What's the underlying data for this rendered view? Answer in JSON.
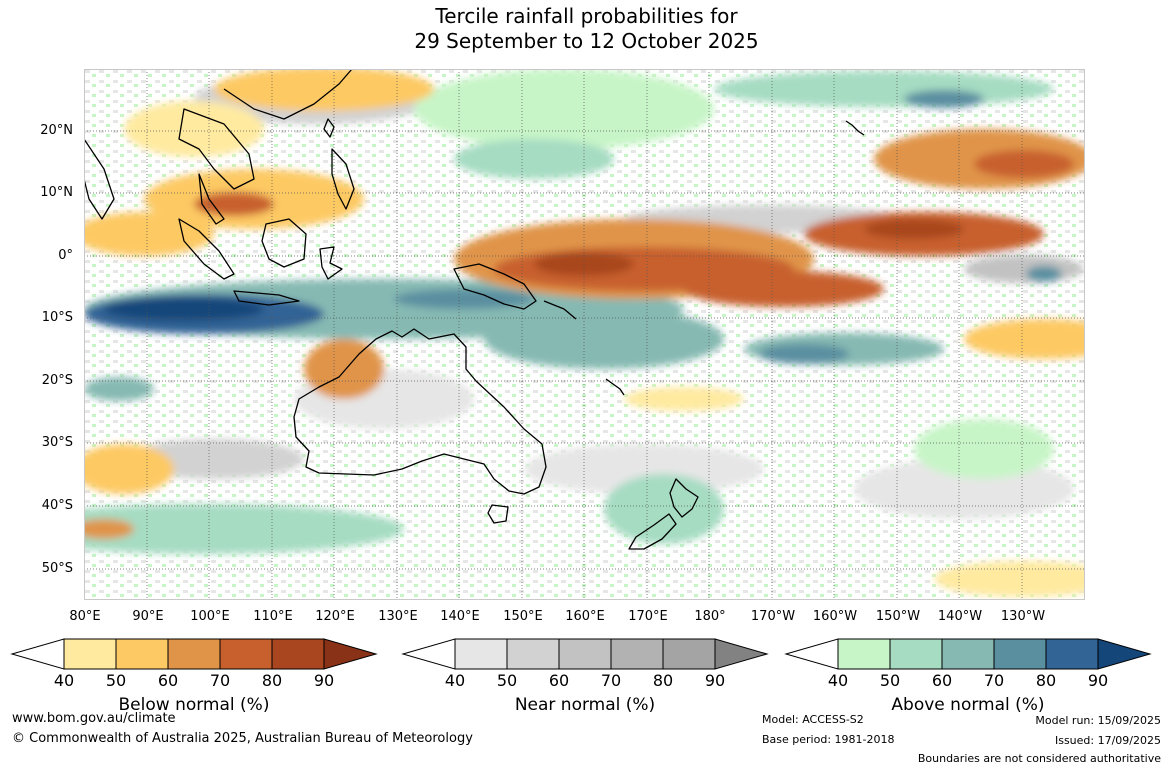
{
  "title": {
    "line1": "Tercile rainfall probabilities for",
    "line2": "29 September to 12 October 2025"
  },
  "lat_labels": [
    "20°N",
    "10°N",
    "0°",
    "10°S",
    "20°S",
    "30°S",
    "40°S",
    "50°S"
  ],
  "lon_labels": [
    "80°E",
    "90°E",
    "100°E",
    "110°E",
    "120°E",
    "130°E",
    "140°E",
    "150°E",
    "160°E",
    "170°E",
    "180°",
    "170°W",
    "160°W",
    "150°W",
    "140°W",
    "130°W"
  ],
  "colorbars": {
    "below": {
      "name": "Below normal (%)",
      "ticks": [
        "40",
        "50",
        "60",
        "70",
        "80",
        "90"
      ],
      "colors": [
        "#ffffff",
        "#ffeaa0",
        "#fdc964",
        "#e09448",
        "#c8602e",
        "#a9461f",
        "#8a3217"
      ]
    },
    "near": {
      "name": "Near normal (%)",
      "ticks": [
        "40",
        "50",
        "60",
        "70",
        "80",
        "90"
      ],
      "colors": [
        "#ffffff",
        "#e6e6e6",
        "#d2d2d2",
        "#c2c2c2",
        "#b2b2b2",
        "#a4a4a4",
        "#828282"
      ]
    },
    "above": {
      "name": "Above normal (%)",
      "ticks": [
        "40",
        "50",
        "60",
        "70",
        "80",
        "90"
      ],
      "colors": [
        "#ffffff",
        "#c8f5c8",
        "#a6dcc2",
        "#86b9b2",
        "#5a8fa0",
        "#326496",
        "#14467a"
      ]
    }
  },
  "footer": {
    "website": "www.bom.gov.au/climate",
    "copyright": "© Commonwealth of Australia 2025, Australian Bureau of Meteorology",
    "model": "Model: ACCESS-S2",
    "base_period": "Base period: 1981-2018",
    "model_run": "Model run: 15/09/2025",
    "issued": "Issued: 17/09/2025",
    "boundaries": "Boundaries are not considered authoritative"
  }
}
